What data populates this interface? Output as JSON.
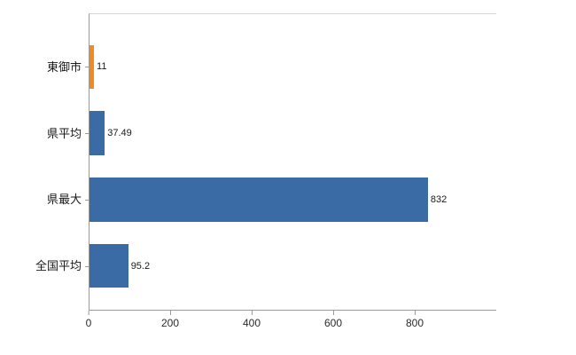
{
  "chart_data": {
    "type": "bar",
    "orientation": "horizontal",
    "title": "",
    "xlabel": "",
    "ylabel": "",
    "categories": [
      "東御市",
      "県平均",
      "県最大",
      "全国平均"
    ],
    "values": [
      11,
      37.49,
      832,
      95.2
    ],
    "value_labels": [
      "11",
      "37.49",
      "832",
      "95.2"
    ],
    "bar_colors": [
      "#f28a1d",
      "#3b6ba5",
      "#3b6ba5",
      "#3b6ba5"
    ],
    "x_ticks": [
      "0",
      "200",
      "400",
      "600",
      "800"
    ],
    "x_tick_values": [
      0,
      200,
      400,
      600,
      800
    ],
    "xlim": [
      0,
      1000
    ],
    "grid": false,
    "legend": "none"
  },
  "colors": {
    "background": "#ffffff",
    "axis": "#9a9a9a",
    "plot_border": "#d4d4d4",
    "tick_label": "#2b2b2b",
    "category_label": "#1a1a1a",
    "value_label": "#1a1a1a"
  }
}
